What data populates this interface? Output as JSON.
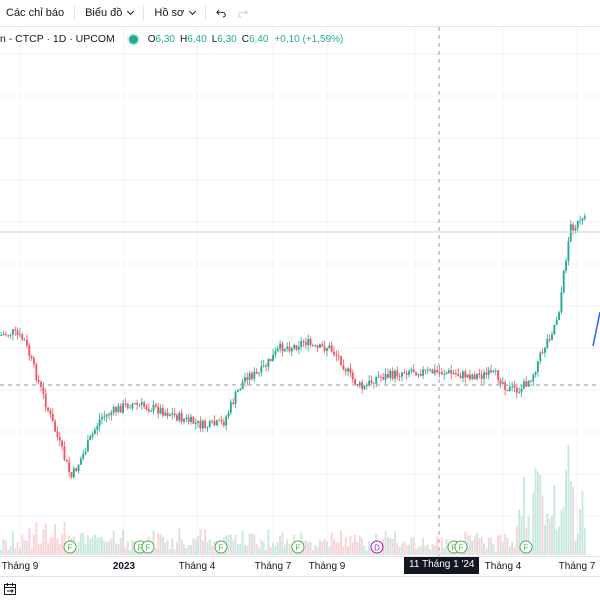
{
  "toolbar": {
    "indicators_label": "Các chỉ báo",
    "chart_type_label": "Biểu đồ",
    "profile_label": "Hồ sơ"
  },
  "legend": {
    "symbol": "n - CTCP · 1D · UPCOM",
    "open_label": "O",
    "open": "6,30",
    "high_label": "H",
    "high": "6,40",
    "low_label": "L",
    "low": "6,30",
    "close_label": "C",
    "close": "6,40",
    "change": "+0,10 (+1,59%)"
  },
  "colors": {
    "up": "#22ab94",
    "down": "#f7525f",
    "up_volume": "#c8e8e0",
    "down_volume": "#fbd3d6",
    "grid": "#f0f3fa",
    "crosshair": "#9598a1",
    "drawing_line": "#2962ff",
    "event_marker": "#4caf50",
    "dividend_marker": "#9c27b0"
  },
  "time_axis": {
    "labels": [
      "Tháng 9",
      "2023",
      "Tháng 4",
      "Tháng 7",
      "Tháng 9",
      "Tháng 4",
      "Tháng 7"
    ],
    "crosshair_label": "11 Tháng 1 '24"
  },
  "events": [
    {
      "letter": "F"
    },
    {
      "letter": "F"
    },
    {
      "letter": "F"
    },
    {
      "letter": "F"
    },
    {
      "letter": "F"
    },
    {
      "letter": "D"
    },
    {
      "letter": "F"
    },
    {
      "letter": "F"
    },
    {
      "letter": "F"
    }
  ],
  "icons": {
    "undo": "undo-icon",
    "redo": "redo-icon",
    "date_range": "date-range-icon"
  },
  "chart_data": {
    "type": "candlestick",
    "period": "1D",
    "anchors": [
      [
        0,
        0.62
      ],
      [
        0.02,
        0.63
      ],
      [
        0.04,
        0.6
      ],
      [
        0.07,
        0.42
      ],
      [
        0.1,
        0.24
      ],
      [
        0.12,
        0.12
      ],
      [
        0.14,
        0.2
      ],
      [
        0.17,
        0.33
      ],
      [
        0.22,
        0.38
      ],
      [
        0.27,
        0.36
      ],
      [
        0.32,
        0.32
      ],
      [
        0.35,
        0.3
      ],
      [
        0.38,
        0.31
      ],
      [
        0.4,
        0.4
      ],
      [
        0.42,
        0.48
      ],
      [
        0.44,
        0.48
      ],
      [
        0.46,
        0.53
      ],
      [
        0.48,
        0.58
      ],
      [
        0.5,
        0.58
      ],
      [
        0.52,
        0.6
      ],
      [
        0.54,
        0.57
      ],
      [
        0.56,
        0.58
      ],
      [
        0.58,
        0.54
      ],
      [
        0.6,
        0.47
      ],
      [
        0.62,
        0.43
      ],
      [
        0.64,
        0.47
      ],
      [
        0.67,
        0.48
      ],
      [
        0.7,
        0.5
      ],
      [
        0.73,
        0.49
      ],
      [
        0.76,
        0.49
      ],
      [
        0.79,
        0.48
      ],
      [
        0.82,
        0.48
      ],
      [
        0.85,
        0.48
      ],
      [
        0.87,
        0.43
      ],
      [
        0.89,
        0.43
      ],
      [
        0.91,
        0.48
      ],
      [
        0.92,
        0.53
      ],
      [
        0.935,
        0.6
      ],
      [
        0.945,
        0.64
      ],
      [
        0.955,
        0.7
      ],
      [
        0.965,
        0.85
      ],
      [
        0.975,
        1.0
      ],
      [
        1.0,
        1.02
      ]
    ],
    "grid": true,
    "volume_pane": true,
    "crosshair": true
  }
}
